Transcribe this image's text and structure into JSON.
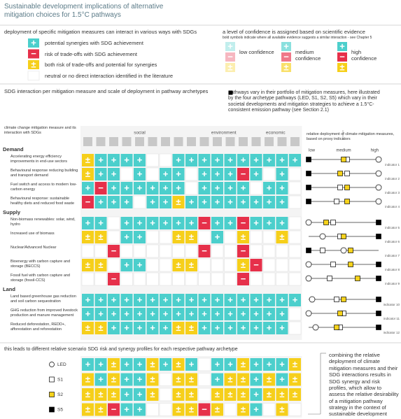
{
  "title": "Sustainable development implications of alternative mitigation choices for 1.5°C pathways",
  "legend": {
    "heading": "deployment of specific mitigation measures can interact in various ways with SDGs",
    "items": [
      {
        "symbol": "+",
        "text": "potential synergies with SDG achievement",
        "color": "#4ccfcc"
      },
      {
        "symbol": "−",
        "text": "risk of trade-offs with SDG achievement",
        "color": "#e6304a"
      },
      {
        "symbol": "±",
        "text": "both risk of trade-offs and potential for synergies",
        "color": "#f6cf1a"
      },
      {
        "symbol": "",
        "text": "neutral or no direct interaction identified in the literature",
        "color": "#ffffff"
      }
    ]
  },
  "confidence": {
    "heading": "a level of confidence is assigned based on scientific evidence",
    "note": "bold symbols indicate where all available evidence suggests a similar interaction - see Chapter 5",
    "levels": [
      {
        "label": "low confidence",
        "opacity": 0.35
      },
      {
        "label": "medium confidence",
        "opacity": 0.65
      },
      {
        "label": "high confidence",
        "opacity": 1
      }
    ]
  },
  "matrix": {
    "heading": "SDG interaction per mitigation measure and scale of deployment in pathway archetypes",
    "pathways_note_before": "pathways vary in their portfolio of mitigation measures, here illustrated by the four archetype pathways (",
    "pathways_note_after": ") which vary in their societal developments and mitigation strategies to achieve a 1.5°C-consistent emission pathway (see Section 2.1)",
    "measure_header": "climate change mitigation measure and its interaction with SDGs",
    "groups": [
      {
        "label": "social",
        "count": 9
      },
      {
        "label": "environment",
        "count": 4
      },
      {
        "label": "economic",
        "count": 4
      }
    ],
    "deployment_header": "relative deployment of climate mitigation measures, based on proxy indicators",
    "deployment_ticks": [
      "low",
      "medium",
      "high"
    ],
    "archetypes": [
      {
        "name": "LED",
        "shape": "circle",
        "color": "#ffffff"
      },
      {
        "name": "S1",
        "shape": "square",
        "color": "#ffffff"
      },
      {
        "name": "S2",
        "shape": "square",
        "color": "#f6d21c"
      },
      {
        "name": "S5",
        "shape": "square",
        "color": "#000000"
      }
    ],
    "sections": [
      {
        "label": "Demand",
        "rows": [
          {
            "measure": "Accelerating energy efficiency improvements in end-use sectors",
            "indicator": "indicator 1",
            "deployment": [
              1,
              0.55,
              0.5,
              0
            ],
            "cells": [
              "±",
              "+",
              "+",
              "+",
              "+",
              "",
              "",
              "+",
              "+",
              "+",
              "+",
              "+",
              "+",
              "+",
              "+",
              "+",
              "+"
            ]
          },
          {
            "measure": "Behavioural response reducing building and transport demand",
            "indicator": "indicator 2",
            "deployment": [
              1,
              0.55,
              0.45,
              0
            ],
            "cells": [
              "±",
              "+",
              "+",
              "",
              "+",
              "",
              "+",
              "+",
              "",
              "+",
              "+",
              "+",
              "−",
              "+",
              "",
              "+",
              ""
            ]
          },
          {
            "measure": "Fuel switch and access to modern low-carbon energy",
            "indicator": "indicator 3",
            "deployment": [
              1,
              0.45,
              0.55,
              0
            ],
            "cells": [
              "+",
              "−",
              "+",
              "+",
              "+",
              "+",
              "+",
              "+",
              "",
              "+",
              "+",
              "+",
              "+",
              "",
              "+",
              "+",
              ""
            ]
          },
          {
            "measure": "Behavioural response: sustainable healthy diets and reduced food waste",
            "indicator": "indicator 4",
            "deployment": [
              1,
              0.4,
              0.55,
              0
            ],
            "cells": [
              "−",
              "+",
              "+",
              "+",
              "",
              "+",
              "+",
              "±",
              "+",
              "+",
              "+",
              "+",
              "+",
              "+",
              "+",
              "+",
              ""
            ]
          }
        ]
      },
      {
        "label": "Supply",
        "rows": [
          {
            "measure": "Non-biomass renewables: solar, wind, hydro",
            "indicator": "indicator 5",
            "deployment": [
              0,
              0.35,
              0.25,
              1
            ],
            "cells": [
              "+",
              "+",
              "",
              "+",
              "+",
              "+",
              "+",
              "+",
              "+",
              "−",
              "+",
              "+",
              "−",
              "+",
              "+",
              "+",
              ""
            ]
          },
          {
            "measure": "Increased use of biomass",
            "indicator": "indicator 6",
            "deployment": [
              0.2,
              0.45,
              0.5,
              1
            ],
            "cells": [
              "±",
              "±",
              "",
              "+",
              "+",
              "",
              "",
              "±",
              "±",
              "",
              "+",
              "",
              "±",
              "",
              "",
              "±",
              ""
            ]
          },
          {
            "measure": "Nuclear/Advanced Nuclear",
            "indicator": "indicator 7",
            "deployment": [
              0.5,
              0.2,
              0.6,
              0
            ],
            "cells": [
              "",
              "",
              "−",
              "",
              "",
              "",
              "",
              "",
              "",
              "−",
              "",
              "",
              "−",
              "",
              "",
              "",
              ""
            ]
          },
          {
            "measure": "Bioenergy with carbon capture and storage (BECCS)",
            "indicator": "indicator 8",
            "deployment": [
              0,
              0.35,
              0.6,
              1
            ],
            "cells": [
              "±",
              "±",
              "",
              "+",
              "+",
              "",
              "",
              "±",
              "±",
              "",
              "",
              "",
              "±",
              "−",
              "",
              "",
              ""
            ]
          },
          {
            "measure": "Fossil fuel with carbon capture and storage (fossil-CCS)",
            "indicator": "indicator 9",
            "deployment": [
              0,
              0.3,
              0.7,
              1
            ],
            "cells": [
              "",
              "",
              "−",
              "",
              "",
              "",
              "",
              "",
              "",
              "",
              "",
              "",
              "−",
              "",
              "",
              "",
              ""
            ]
          }
        ]
      },
      {
        "label": "Land",
        "rows": [
          {
            "measure": "Land based greenhouse gas reduction and soil carbon sequestration",
            "indicator": "indicator 10",
            "deployment": [
              0.05,
              0.4,
              0.5,
              1
            ],
            "cells": [
              "+",
              "+",
              "+",
              "+",
              "+",
              "+",
              "+",
              "+",
              "+",
              "+",
              "+",
              "+",
              "+",
              "+",
              "+",
              "+",
              "+"
            ]
          },
          {
            "measure": "GHG reduction from improved livestock production and manure management",
            "indicator": "indicator 11",
            "deployment": [
              0,
              0.5,
              0.45,
              1
            ],
            "cells": [
              "+",
              "+",
              "+",
              "+",
              "+",
              "+",
              "+",
              "+",
              "+",
              "+",
              "+",
              "+",
              "+",
              "+",
              "+",
              "+",
              ""
            ]
          },
          {
            "measure": "Reduced deforestation, REDD+, afforestation and reforestation",
            "indicator": "indicator 12",
            "deployment": [
              0.1,
              0.45,
              0.4,
              1
            ],
            "cells": [
              "±",
              "±",
              "+",
              "+",
              "+",
              "+",
              "+",
              "±",
              "±",
              "+",
              "+",
              "+",
              "+",
              "+",
              "+",
              "+",
              ""
            ]
          }
        ]
      }
    ]
  },
  "profiles": {
    "heading": "this leads to different relative scenario SDG risk and synergy profiles for each respective pathway archetype",
    "note": "combining the relative deployment of climate mitigation measures and their SDG interactions results in SDG synergy and risk profiles, which allow to assess the relative desirability of a mitigation pathway strategy in the context of sustainable development",
    "rows": [
      {
        "cells": [
          "+",
          "+",
          "±",
          "+",
          "+",
          "±",
          "+",
          "±",
          "+",
          "",
          "+",
          "+",
          "±",
          "+",
          "+",
          "+",
          "±"
        ]
      },
      {
        "cells": [
          "±",
          "+",
          "±",
          "+",
          "+",
          "±",
          "",
          "±",
          "±",
          "",
          "+",
          "±",
          "±",
          "+",
          "±",
          "+",
          "±"
        ]
      },
      {
        "cells": [
          "±",
          "±",
          "±",
          "+",
          "+",
          "±",
          "",
          "±",
          "±",
          "",
          "±",
          "±",
          "±",
          "+",
          "±",
          "±",
          "±"
        ]
      },
      {
        "cells": [
          "±",
          "±",
          "−",
          "+",
          "+",
          "",
          "",
          "±",
          "±",
          "−",
          "±",
          "",
          "±",
          "+",
          "",
          "±",
          ""
        ]
      }
    ]
  }
}
